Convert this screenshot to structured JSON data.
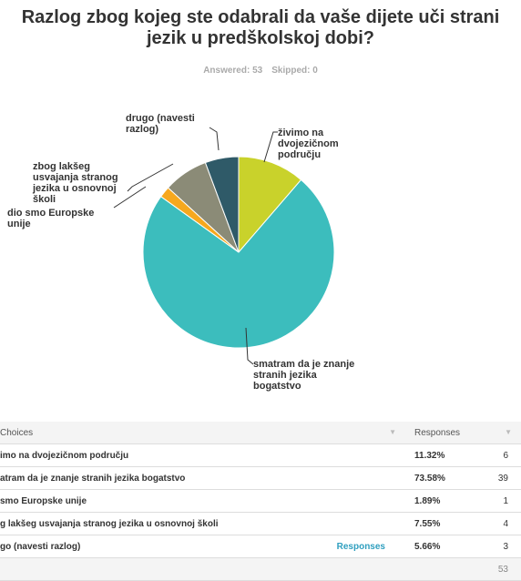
{
  "chart_data": {
    "type": "pie",
    "title": "Razlog zbog kojeg ste odabrali da vaše dijete uči strani jezik u predškolskoj dobi?",
    "answered": "Answered: 53",
    "skipped": "Skipped: 0",
    "categories": [
      "živimo na dvojezičnom području",
      "smatram da je znanje stranih jezika bogatstvo",
      "dio smo Europske unije",
      "zbog lakšeg usvajanja stranog jezika u osnovnoj školi",
      "drugo (navesti razlog)"
    ],
    "values": [
      11.32,
      73.58,
      1.89,
      7.55,
      5.66
    ],
    "colors": [
      "#c9d22b",
      "#3cbdbd",
      "#f6a81e",
      "#8b8b77",
      "#2f5a68"
    ]
  },
  "table": {
    "header": [
      "Choices",
      "Responses"
    ],
    "rows": [
      [
        "imo na dvojezičnom području",
        "11.32%",
        6
      ],
      [
        "atram da je znanje stranih jezika bogatstvo",
        "73.58%",
        39
      ],
      [
        "smo Europske unije",
        "1.89%",
        1
      ],
      [
        "g lakšeg usvajanja stranog jezika u osnovnoj školi",
        "7.55%",
        4
      ],
      [
        "go (navesti razlog)",
        "5.66%",
        3
      ]
    ],
    "row_link": "Responses",
    "total": 53
  }
}
